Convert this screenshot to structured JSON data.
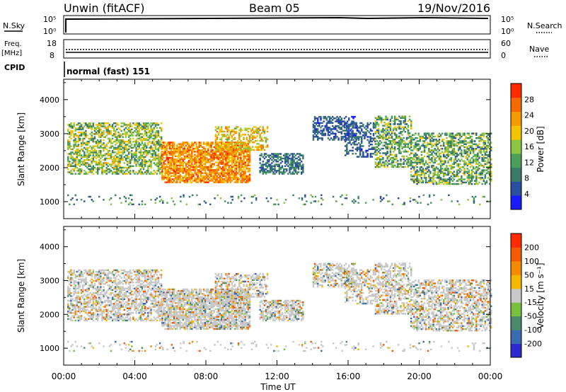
{
  "header": {
    "station": "Unwin (fitACF)",
    "beam": "Beam 05",
    "date": "19/Nov/2016"
  },
  "panels": {
    "nsky": {
      "label": "N.Sky",
      "top_tick": "10^5",
      "bottom_tick": "10^0"
    },
    "nsearch": {
      "label": "N.Search",
      "top_tick": "10^5",
      "bottom_tick": "10^0"
    },
    "freq": {
      "label_line1": "Freq.",
      "label_line2": "[MHz]",
      "ticks": [
        "18",
        "8"
      ]
    },
    "nave": {
      "label": "Nave",
      "ticks": [
        "60",
        "0"
      ]
    },
    "cpid": {
      "label": "CPID",
      "value": "normal (fast) 151"
    }
  },
  "colors": {
    "power_scale": [
      "#1a1aff",
      "#2a4ea0",
      "#3a7a6a",
      "#4a9e5a",
      "#8cc63f",
      "#f5c400",
      "#f59a00",
      "#f56a00",
      "#ff2a00"
    ],
    "velocity_scale": [
      "#2a2ad0",
      "#3a6ab0",
      "#4a8a6a",
      "#7ac040",
      "#c8c8c8",
      "#f5b800",
      "#f58a00",
      "#f55a00",
      "#ff2a00"
    ],
    "ground_scatter": "#c8c8c8"
  },
  "chart_data": [
    {
      "type": "heatmap",
      "name": "Power",
      "xlabel": "Time UT",
      "ylabel": "Slant Range [km]",
      "x_ticks": [
        "00:00",
        "04:00",
        "08:00",
        "12:00",
        "16:00",
        "20:00",
        "00:00"
      ],
      "y_ticks": [
        "1000",
        "2000",
        "3000",
        "4000"
      ],
      "ylim": [
        500,
        4600
      ],
      "colorbar": {
        "label": "Power [dB]",
        "ticks": [
          "28",
          "24",
          "20",
          "16",
          "12",
          "8",
          "4"
        ],
        "range": [
          0,
          32
        ]
      }
    },
    {
      "type": "heatmap",
      "name": "Velocity",
      "xlabel": "Time UT",
      "ylabel": "Slant Range [km]",
      "x_ticks": [
        "00:00",
        "04:00",
        "08:00",
        "12:00",
        "16:00",
        "20:00",
        "00:00"
      ],
      "y_ticks": [
        "1000",
        "2000",
        "3000",
        "4000"
      ],
      "ylim": [
        500,
        4600
      ],
      "colorbar": {
        "label": "Velocity [m s⁻¹]",
        "ticks": [
          "200",
          "100",
          "50",
          "15",
          "-15",
          "-50",
          "-100",
          "-200"
        ]
      }
    }
  ]
}
